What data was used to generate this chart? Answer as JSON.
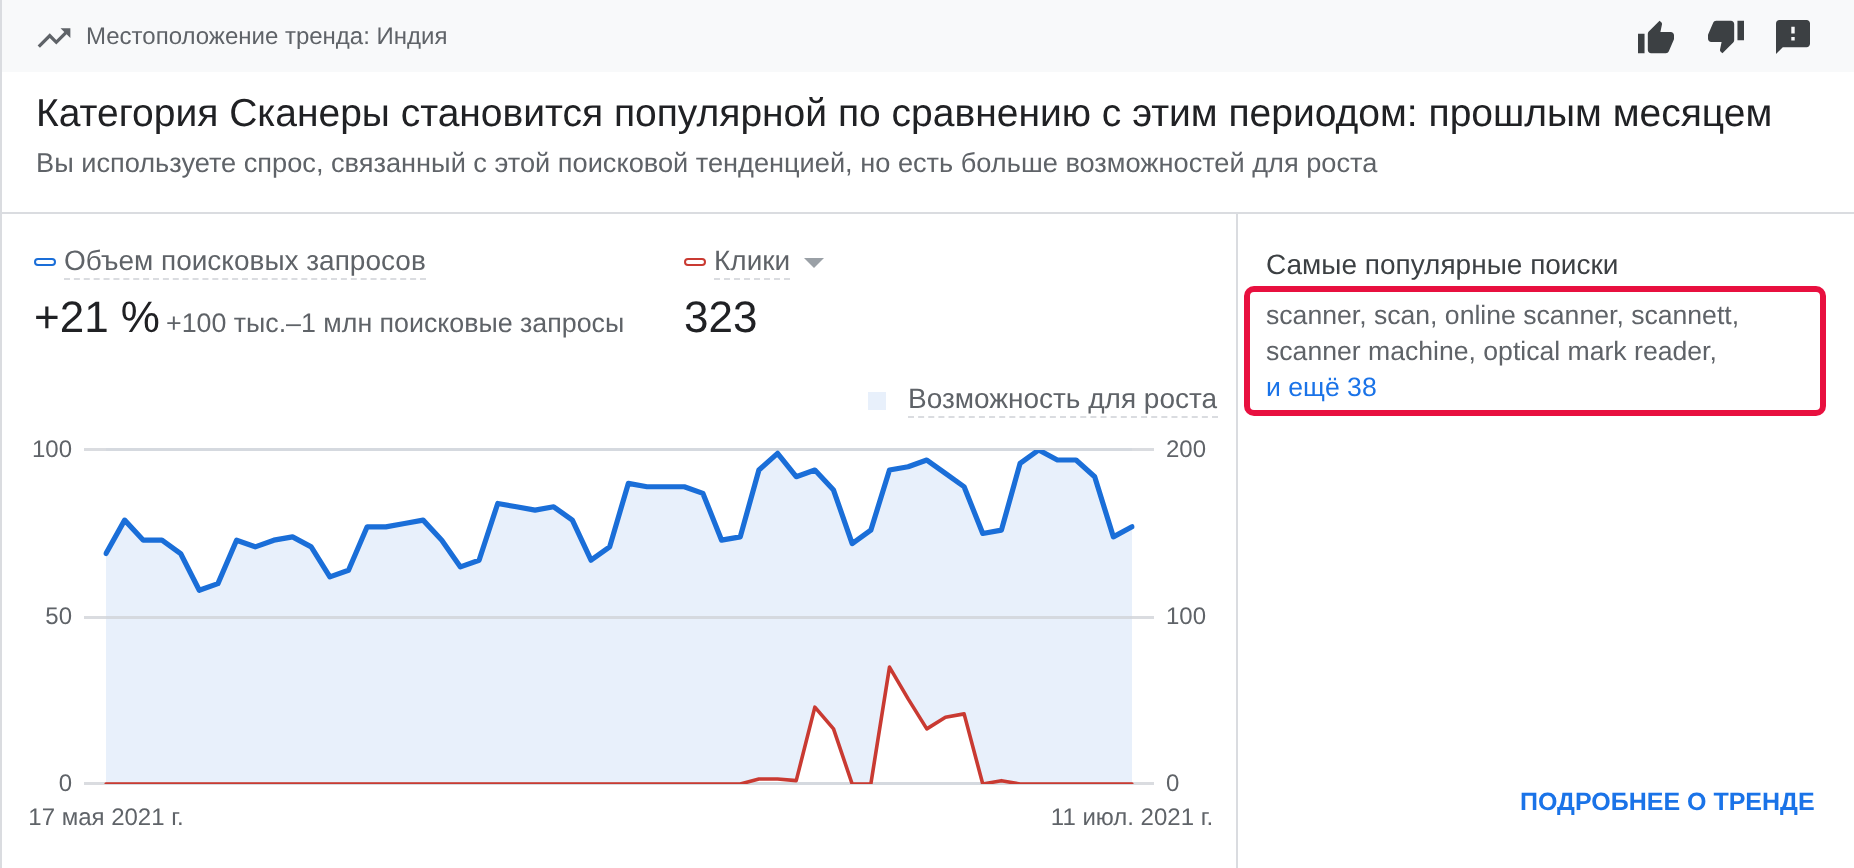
{
  "chart_data": {
    "type": "line",
    "title": "Категория Сканеры становится популярной по сравнению с этим периодом: прошлым месяцем",
    "subtitle": "Вы используете спрос, связанный с этой поисковой тенденцией, но есть больше возможностей для роста",
    "categories": [
      "17 мая 2021 г.",
      null,
      null,
      null,
      null,
      null,
      null,
      null,
      null,
      null,
      null,
      null,
      null,
      null,
      null,
      null,
      null,
      null,
      null,
      null,
      null,
      null,
      null,
      null,
      null,
      null,
      null,
      null,
      null,
      null,
      null,
      null,
      null,
      null,
      null,
      null,
      null,
      null,
      null,
      null,
      null,
      null,
      null,
      null,
      null,
      null,
      null,
      null,
      null,
      null,
      null,
      null,
      null,
      null,
      null,
      "11 июл. 2021 г."
    ],
    "series": [
      {
        "name": "Объем поисковых запросов",
        "type": "area",
        "color": "#1a6ed8",
        "values": [
          69,
          79,
          73,
          73,
          69,
          58,
          60,
          73,
          71,
          73,
          74,
          71,
          62,
          64,
          77,
          77,
          78,
          79,
          73,
          65,
          67,
          84,
          83,
          82,
          83,
          79,
          67,
          71,
          90,
          89,
          89,
          89,
          87,
          73,
          74,
          94,
          99,
          92,
          94,
          88,
          72,
          76,
          94,
          95,
          97,
          93,
          89,
          75,
          76,
          96,
          100,
          97,
          97,
          92,
          74,
          77
        ]
      },
      {
        "name": "Клики",
        "color": "#c93a32",
        "axis": "y2",
        "values": [
          0,
          0,
          0,
          0,
          0,
          0,
          0,
          0,
          0,
          0,
          0,
          0,
          0,
          0,
          0,
          0,
          0,
          0,
          0,
          0,
          0,
          0,
          0,
          0,
          0,
          0,
          0,
          0,
          0,
          0,
          0,
          0,
          0,
          0,
          0,
          3,
          3,
          2,
          46,
          33,
          0,
          0,
          70,
          51,
          33,
          40,
          42,
          0,
          2,
          0,
          0,
          0,
          0,
          0,
          0,
          0
        ]
      }
    ],
    "ylim": [
      0,
      100
    ],
    "yticks": [
      0,
      50,
      100
    ],
    "y2lim": [
      0,
      200
    ],
    "y2ticks": [
      0,
      100,
      200
    ],
    "grid": "y",
    "legend": "top",
    "marker": "none",
    "annotations": [
      "Местоположение тренда: Индия",
      "+21 %",
      "+100 тыс.–1 млн поисковые запросы",
      "323",
      "Возможность для роста",
      "Самые популярные поиски",
      "scanner, scan, online scanner, scannett, scanner machine, optical mark reader,",
      "и ещё 38",
      "ПОДРОБНЕЕ О ТРЕНДЕ"
    ]
  }
}
